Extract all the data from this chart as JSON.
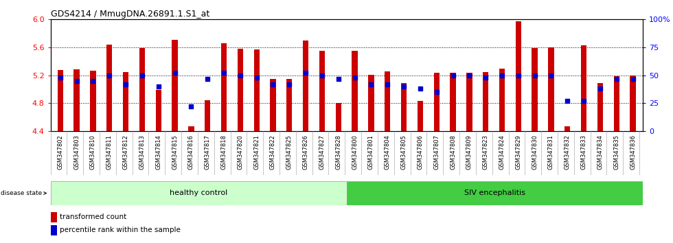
{
  "title": "GDS4214 / MmugDNA.26891.1.S1_at",
  "samples": [
    "GSM347802",
    "GSM347803",
    "GSM347810",
    "GSM347811",
    "GSM347812",
    "GSM347813",
    "GSM347814",
    "GSM347815",
    "GSM347816",
    "GSM347817",
    "GSM347818",
    "GSM347820",
    "GSM347821",
    "GSM347822",
    "GSM347825",
    "GSM347826",
    "GSM347827",
    "GSM347828",
    "GSM347800",
    "GSM347801",
    "GSM347804",
    "GSM347805",
    "GSM347806",
    "GSM347807",
    "GSM347808",
    "GSM347809",
    "GSM347823",
    "GSM347824",
    "GSM347829",
    "GSM347830",
    "GSM347831",
    "GSM347832",
    "GSM347833",
    "GSM347834",
    "GSM347835",
    "GSM347836"
  ],
  "bar_values": [
    5.28,
    5.29,
    5.27,
    5.64,
    5.25,
    5.59,
    4.99,
    5.71,
    4.47,
    4.84,
    5.66,
    5.58,
    5.57,
    5.15,
    5.15,
    5.7,
    5.55,
    4.8,
    5.55,
    5.21,
    5.26,
    5.09,
    4.83,
    5.24,
    5.24,
    5.24,
    5.25,
    5.3,
    5.97,
    5.59,
    5.6,
    4.47,
    5.63,
    5.09,
    5.19,
    5.2
  ],
  "percentile_values": [
    48,
    45,
    45,
    50,
    42,
    50,
    40,
    52,
    22,
    47,
    52,
    50,
    48,
    42,
    42,
    52,
    50,
    47,
    48,
    42,
    42,
    40,
    38,
    35,
    50,
    50,
    48,
    50,
    50,
    50,
    50,
    27,
    27,
    38,
    47,
    47
  ],
  "healthy_count": 18,
  "bar_color": "#CC0000",
  "dot_color": "#0000CC",
  "healthy_color": "#CCFFCC",
  "siv_color": "#44CC44",
  "ymin": 4.4,
  "ymax": 6.0,
  "yticks": [
    4.4,
    4.8,
    5.2,
    5.6,
    6.0
  ],
  "right_ytick_vals": [
    0,
    25,
    50,
    75,
    100
  ],
  "right_ytick_labels": [
    "0",
    "25",
    "50",
    "75",
    "100%"
  ],
  "bar_width": 0.35,
  "xtick_bg_color": "#CCCCCC",
  "title_fontsize": 9,
  "label_fontsize": 7,
  "tick_fontsize": 8,
  "xtick_fontsize": 6
}
